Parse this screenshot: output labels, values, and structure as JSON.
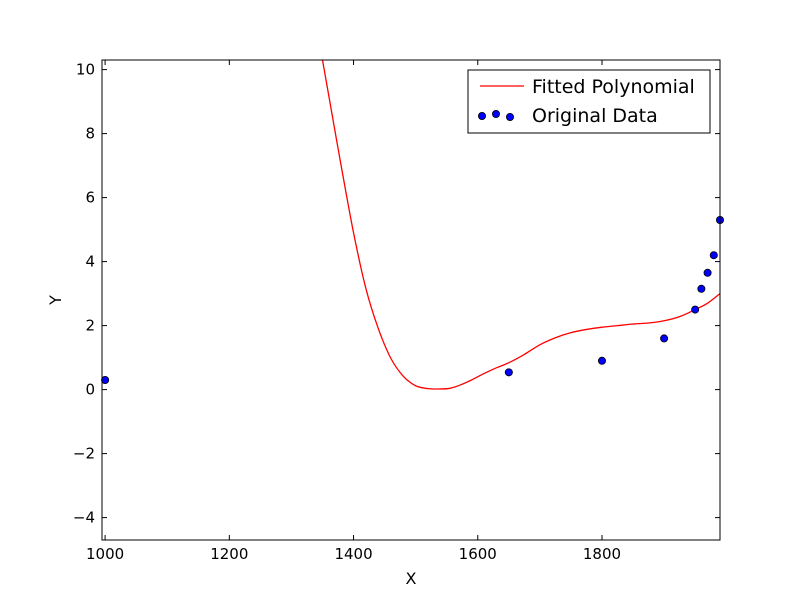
{
  "chart_data": {
    "type": "line",
    "title": "",
    "xlabel": "X",
    "ylabel": "Y",
    "xlim": [
      995,
      1990
    ],
    "ylim": [
      -4.7,
      10.3
    ],
    "x_ticks": [
      1000,
      1200,
      1400,
      1600,
      1800
    ],
    "y_ticks": [
      -4,
      -2,
      0,
      2,
      4,
      6,
      8,
      10
    ],
    "x_tick_labels": [
      "1000",
      "1200",
      "1400",
      "1600",
      "1800"
    ],
    "y_tick_labels": [
      "−4",
      "−2",
      "0",
      "2",
      "4",
      "6",
      "8",
      "10"
    ],
    "grid": false,
    "legend_position": "top-right",
    "series": [
      {
        "name": "Fitted Polynomial",
        "kind": "line",
        "color": "#ff0000",
        "x": [
          1350,
          1360,
          1380,
          1400,
          1420,
          1440,
          1460,
          1480,
          1500,
          1520,
          1540,
          1555,
          1570,
          1590,
          1610,
          1630,
          1650,
          1675,
          1700,
          1725,
          1750,
          1775,
          1800,
          1825,
          1850,
          1875,
          1900,
          1925,
          1950,
          1970,
          1990
        ],
        "y": [
          10.3,
          9.2,
          7.0,
          4.9,
          3.15,
          1.9,
          0.98,
          0.42,
          0.12,
          0.03,
          0.02,
          0.04,
          0.13,
          0.3,
          0.5,
          0.68,
          0.84,
          1.1,
          1.4,
          1.62,
          1.78,
          1.88,
          1.95,
          2.0,
          2.05,
          2.08,
          2.15,
          2.28,
          2.5,
          2.7,
          3.0
        ]
      },
      {
        "name": "Original Data",
        "kind": "scatter",
        "color": "#0000ff",
        "x": [
          1000,
          1650,
          1800,
          1900,
          1950,
          1960,
          1970,
          1980,
          1990
        ],
        "y": [
          0.3,
          0.54,
          0.9,
          1.6,
          2.5,
          3.15,
          3.65,
          4.2,
          5.3
        ]
      }
    ]
  }
}
